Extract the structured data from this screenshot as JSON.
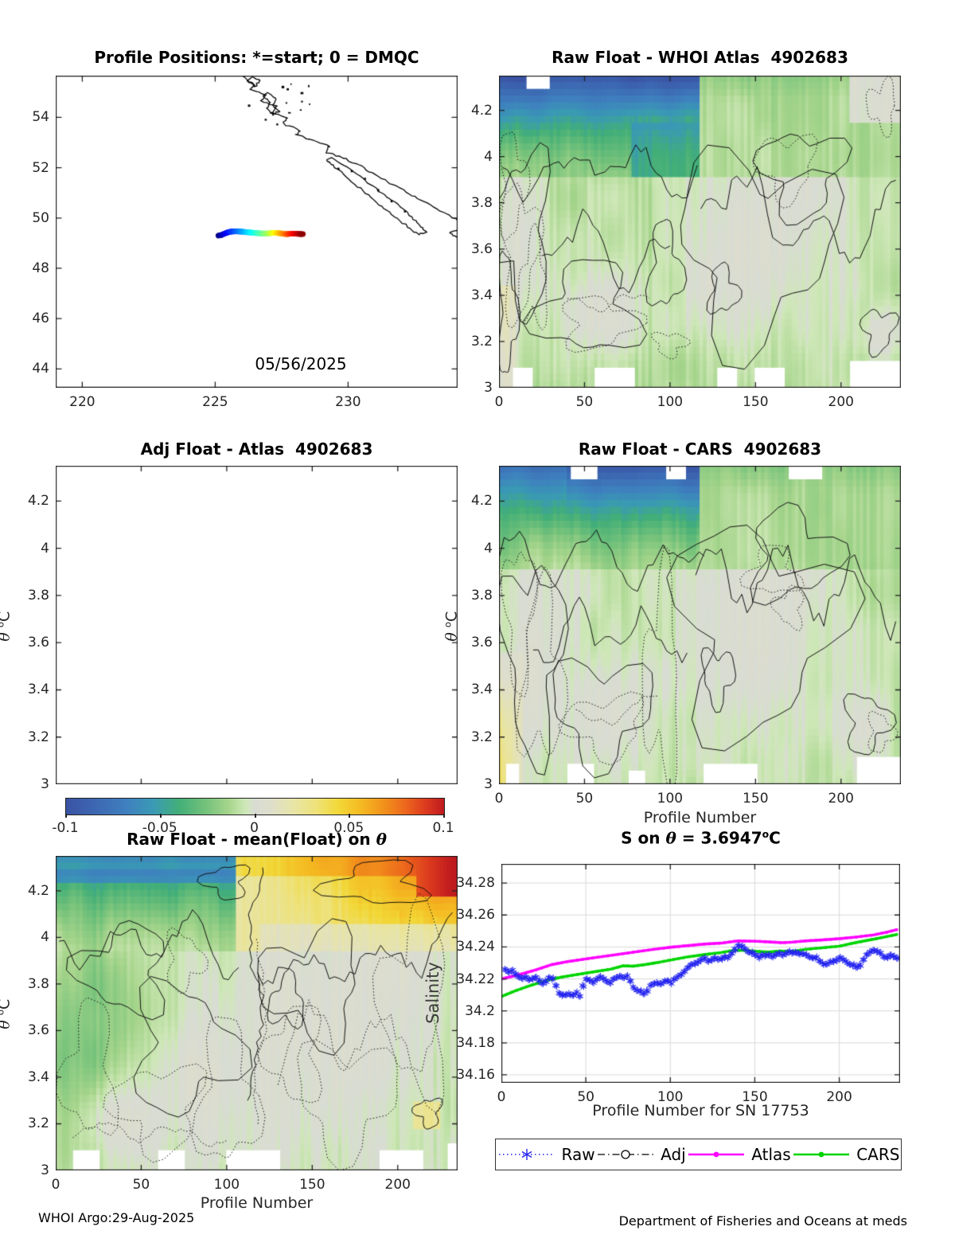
{
  "panels": {
    "map": {
      "title": "Profile Positions: *=start; 0 = DMQC",
      "date_label": "05/56/2025"
    },
    "whoi": {
      "title": "Raw Float - WHOI Atlas  4902683"
    },
    "adj": {
      "title": "Adj Float - Atlas  4902683"
    },
    "cars": {
      "title": "Raw Float - CARS  4902683",
      "xlabel": "Profile Number"
    },
    "meanfloat": {
      "title_prefix": "Raw Float - mean(Float) on ",
      "theta": "θ",
      "xlabel": "Profile Number"
    },
    "sline": {
      "title_prefix": "S on ",
      "theta": "θ",
      "title_eq": " = 3.6947",
      "deg": "o",
      "unit": "C",
      "xlabel": "Profile Number for SN 17753",
      "ylabel": "Salinity"
    }
  },
  "ylabels": {
    "theta": "θ",
    "deg": "o",
    "unit": "C"
  },
  "footer": {
    "left": "WHOI Argo:29-Aug-2025",
    "right": "Department of Fisheries and Oceans at meds"
  },
  "legend": {
    "items": [
      {
        "label": "Raw",
        "color": "#2424f0",
        "style": "dotted-asterisk"
      },
      {
        "label": "Adj",
        "color": "#000000",
        "style": "dashdot-circle"
      },
      {
        "label": "Atlas",
        "color": "#ff00ff",
        "style": "solid-dot"
      },
      {
        "label": "CARS",
        "color": "#00d400",
        "style": "solid-dot"
      }
    ]
  },
  "axes": {
    "map": {
      "xticks": [
        220,
        225,
        230
      ],
      "xtick_labels": [
        "220",
        "225",
        "230"
      ],
      "yticks": [
        44,
        46,
        48,
        50,
        52,
        54
      ],
      "ytick_labels": [
        "44",
        "46",
        "48",
        "50",
        "52",
        "54"
      ]
    },
    "heat": {
      "xticks": [
        0,
        50,
        100,
        150,
        200
      ],
      "xtick_labels": [
        "0",
        "50",
        "100",
        "150",
        "200"
      ],
      "yticks": [
        3,
        3.2,
        3.4,
        3.6,
        3.8,
        4,
        4.2
      ],
      "ytick_labels": [
        "3",
        "3.2",
        "3.4",
        "3.6",
        "3.8",
        "4",
        "4.2"
      ]
    },
    "colorbar": {
      "ticks": [
        -0.1,
        -0.05,
        0,
        0.05,
        0.1
      ],
      "tick_labels": [
        "-0.1",
        "-0.05",
        "0",
        "0.05",
        "0.1"
      ]
    },
    "sline": {
      "xticks": [
        0,
        50,
        100,
        150,
        200
      ],
      "xtick_labels": [
        "0",
        "50",
        "100",
        "150",
        "200"
      ],
      "yticks": [
        34.16,
        34.18,
        34.2,
        34.22,
        34.24,
        34.26,
        34.28
      ],
      "ytick_labels": [
        "34.16",
        "34.18",
        "34.2",
        "34.22",
        "34.24",
        "34.26",
        "34.28"
      ]
    }
  },
  "colorbar_style": {
    "stops": [
      [
        0,
        "#3a53a4"
      ],
      [
        0.08,
        "#3d68b2"
      ],
      [
        0.16,
        "#3f80bf"
      ],
      [
        0.23,
        "#3a9ab5"
      ],
      [
        0.3,
        "#43af78"
      ],
      [
        0.37,
        "#74c27b"
      ],
      [
        0.43,
        "#a6d58c"
      ],
      [
        0.475,
        "#cfe8b8"
      ],
      [
        0.5,
        "#d9dcd4"
      ],
      [
        0.545,
        "#dfdfca"
      ],
      [
        0.6,
        "#e8e5a8"
      ],
      [
        0.66,
        "#eee27b"
      ],
      [
        0.72,
        "#f2d838"
      ],
      [
        0.78,
        "#f5ba22"
      ],
      [
        0.84,
        "#f2921c"
      ],
      [
        0.9,
        "#ec651d"
      ],
      [
        0.95,
        "#dd3b1f"
      ],
      [
        1,
        "#bf1a1f"
      ]
    ]
  },
  "chart_data": [
    {
      "id": "profile-positions-map",
      "type": "scatter",
      "title": "Profile Positions: *=start; 0 = DMQC",
      "xlim": [
        219.0,
        234.12
      ],
      "ylim": [
        43.25,
        55.66
      ],
      "xticks": [
        220,
        225,
        230
      ],
      "yticks": [
        44,
        46,
        48,
        50,
        52,
        54
      ],
      "annotation": "05/56/2025",
      "track": {
        "note": "float trajectory colored in profile order with jet colormap, start=dark blue, end=dark red",
        "lon": [
          225.12,
          225.25,
          225.4,
          225.55,
          225.75,
          225.95,
          226.15,
          226.35,
          226.55,
          226.75,
          226.95,
          227.1,
          227.25,
          227.4,
          227.55,
          227.7,
          227.85,
          228.0,
          228.15,
          228.3
        ],
        "lat": [
          49.3,
          49.33,
          49.4,
          49.45,
          49.47,
          49.46,
          49.44,
          49.42,
          49.4,
          49.385,
          49.38,
          49.4,
          49.41,
          49.4,
          49.375,
          49.36,
          49.375,
          49.38,
          49.365,
          49.36
        ]
      },
      "coastline": "stylized BC coast / Vancouver Island in upper right"
    },
    {
      "id": "raw-minus-whoi-atlas",
      "type": "heatmap",
      "title": "Raw Float - WHOI Atlas  4902683",
      "xlabel": "",
      "ylabel": "θ oC",
      "xlim": [
        0,
        235
      ],
      "ylim": [
        3.0,
        4.35
      ],
      "value_range": [
        -0.1,
        0.1
      ],
      "features": "strong negative (blue/teal) layer for θ>4.0 at profiles 0-118; light-green/gray mottled field below with black solid and dotted contours; pale yellow near profile 0 below θ 3.45; white gaps at top near profiles 16-30 and along bottom edge"
    },
    {
      "id": "adj-minus-atlas",
      "type": "heatmap",
      "title": "Adj Float - Atlas  4902683",
      "xlim": [
        0,
        235
      ],
      "ylim": [
        3.0,
        4.35
      ],
      "value_range": [
        -0.1,
        0.1
      ],
      "empty": true,
      "note": "axes shown but no adjusted data plotted; horizontal colorbar -0.1..0.1 below"
    },
    {
      "id": "raw-minus-cars",
      "type": "heatmap",
      "title": "Raw Float - CARS  4902683",
      "xlabel": "Profile Number",
      "ylabel": "θ oC",
      "xlim": [
        0,
        235
      ],
      "ylim": [
        3.0,
        4.35
      ],
      "value_range": [
        -0.1,
        0.1
      ],
      "features": "blue/teal negative layer θ>4.0 for profiles 0-118; yellow positive patch at lower-left corner; gray/green mottle with contours elsewhere; white gaps at top near profiles 42-57, 97-109, 170-190"
    },
    {
      "id": "raw-minus-mean-on-theta",
      "type": "heatmap",
      "title": "Raw Float - mean(Float) on θ",
      "xlabel": "Profile Number",
      "ylabel": "θ oC",
      "xlim": [
        0,
        235
      ],
      "ylim": [
        3.0,
        4.35
      ],
      "value_range": [
        -0.1,
        0.1
      ],
      "features": "green negative band θ>4.0 for profiles<108; yellow/orange positive region for profiles>120 strongest at top-right corner; gray mottle with dense dotted contours below"
    },
    {
      "id": "s-on-theta",
      "type": "line",
      "title": "S on θ = 3.6947 oC",
      "xlabel": "Profile Number for SN 17753",
      "ylabel": "Salinity",
      "xlim": [
        0,
        236
      ],
      "ylim": [
        34.155,
        34.292
      ],
      "grid": true,
      "legend_position": "below",
      "series": [
        {
          "name": "Raw",
          "color": "#2424f0",
          "marker": "asterisk",
          "line": "dotted",
          "x": [
            2,
            4,
            6,
            8,
            10,
            12,
            14,
            16,
            18,
            20,
            22,
            24,
            26,
            28,
            30,
            32,
            34,
            36,
            38,
            40,
            42,
            44,
            46,
            48,
            50,
            52,
            54,
            56,
            58,
            60,
            62,
            64,
            66,
            68,
            70,
            72,
            74,
            76,
            78,
            80,
            82,
            84,
            86,
            88,
            90,
            92,
            94,
            96,
            98,
            100,
            102,
            104,
            106,
            108,
            110,
            112,
            114,
            116,
            118,
            120,
            122,
            124,
            126,
            128,
            130,
            132,
            134,
            136,
            138,
            140,
            142,
            144,
            146,
            148,
            150,
            152,
            154,
            156,
            158,
            160,
            162,
            164,
            166,
            168,
            170,
            172,
            174,
            176,
            178,
            180,
            182,
            184,
            186,
            188,
            190,
            192,
            194,
            196,
            198,
            200,
            202,
            204,
            206,
            208,
            210,
            212,
            214,
            216,
            218,
            220,
            222,
            224,
            226,
            228,
            230,
            232,
            234
          ],
          "y": [
            34.2262,
            34.2245,
            34.225,
            34.2228,
            34.2215,
            34.2205,
            34.2212,
            34.2195,
            34.2203,
            34.221,
            34.2185,
            34.2172,
            34.219,
            34.2208,
            34.2198,
            34.216,
            34.2112,
            34.2095,
            34.21,
            34.211,
            34.2098,
            34.2108,
            34.2092,
            34.216,
            34.2198,
            34.219,
            34.218,
            34.2198,
            34.221,
            34.22,
            34.2188,
            34.2178,
            34.2198,
            34.2208,
            34.2218,
            34.2208,
            34.2215,
            34.2188,
            34.215,
            34.2128,
            34.2118,
            34.2108,
            34.2128,
            34.2158,
            34.2168,
            34.2178,
            34.217,
            34.2178,
            34.2188,
            34.218,
            34.2198,
            34.221,
            34.2228,
            34.2248,
            34.2268,
            34.2288,
            34.2298,
            34.2308,
            34.2318,
            34.2328,
            34.2312,
            34.232,
            34.233,
            34.2322,
            34.233,
            34.2338,
            34.233,
            34.236,
            34.239,
            34.2408,
            34.24,
            34.239,
            34.237,
            34.236,
            34.235,
            34.234,
            34.235,
            34.2342,
            34.235,
            34.2342,
            34.235,
            34.236,
            34.2352,
            34.236,
            34.2368,
            34.236,
            34.2368,
            34.236,
            34.2358,
            34.235,
            34.234,
            34.2332,
            34.233,
            34.2312,
            34.23,
            34.2292,
            34.23,
            34.231,
            34.232,
            34.233,
            34.232,
            34.231,
            34.2292,
            34.2282,
            34.2272,
            34.229,
            34.232,
            34.235,
            34.237,
            34.238,
            34.237,
            34.236,
            34.234,
            34.2338,
            34.2348,
            34.2338,
            34.233
          ]
        },
        {
          "name": "Adj",
          "color": "#000000",
          "marker": "circle",
          "line": "dashdot",
          "x": [],
          "y": [],
          "note": "in legend only; no adjusted data visible"
        },
        {
          "name": "Atlas",
          "color": "#ff00ff",
          "marker": "dot",
          "line": "solid",
          "x": [
            0,
            10,
            20,
            30,
            40,
            50,
            60,
            70,
            80,
            90,
            100,
            110,
            120,
            130,
            140,
            150,
            158,
            166,
            172,
            180,
            190,
            200,
            210,
            220,
            228,
            234
          ],
          "y": [
            34.22,
            34.2225,
            34.2255,
            34.229,
            34.231,
            34.2325,
            34.234,
            34.2355,
            34.237,
            34.2385,
            34.2398,
            34.2408,
            34.2418,
            34.2424,
            34.2438,
            34.2436,
            34.2432,
            34.2427,
            34.243,
            34.2438,
            34.2444,
            34.2452,
            34.2462,
            34.2475,
            34.2492,
            34.2508
          ]
        },
        {
          "name": "CARS",
          "color": "#00d400",
          "marker": "dot",
          "line": "solid",
          "x": [
            0,
            8,
            16,
            25,
            35,
            45,
            55,
            65,
            72,
            78,
            85,
            92,
            100,
            110,
            120,
            130,
            138,
            145,
            152,
            158,
            165,
            172,
            180,
            190,
            200,
            210,
            220,
            228,
            234
          ],
          "y": [
            34.209,
            34.2125,
            34.2155,
            34.2185,
            34.221,
            34.2228,
            34.2245,
            34.2262,
            34.2282,
            34.228,
            34.229,
            34.2302,
            34.2318,
            34.2338,
            34.2352,
            34.2365,
            34.238,
            34.2378,
            34.2372,
            34.2368,
            34.2375,
            34.2372,
            34.2385,
            34.2395,
            34.2405,
            34.2428,
            34.2448,
            34.2465,
            34.2478
          ]
        }
      ]
    }
  ]
}
